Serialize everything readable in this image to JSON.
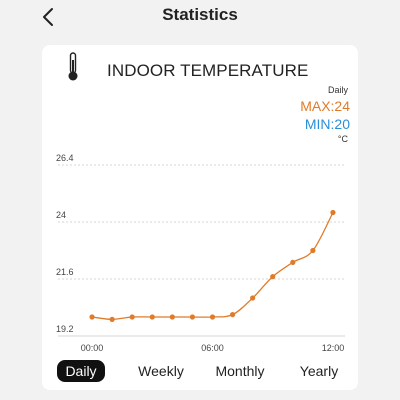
{
  "header": {
    "title": "Statistics",
    "back_icon": "chevron-left-icon"
  },
  "card": {
    "icon": "thermometer-icon",
    "title": "INDOOR TEMPERATURE",
    "period": "Daily",
    "max_label": "MAX:24",
    "min_label": "MIN:20",
    "unit": "°C",
    "colors": {
      "max": "#e07b2a",
      "min": "#2a8fd6",
      "line": "#e07b2a"
    }
  },
  "tabs": [
    {
      "label": "Daily",
      "active": true
    },
    {
      "label": "Weekly",
      "active": false
    },
    {
      "label": "Monthly",
      "active": false
    },
    {
      "label": "Yearly",
      "active": false
    }
  ],
  "chart_data": {
    "type": "line",
    "x_tick_labels": [
      "00:00",
      "06:00",
      "12:00"
    ],
    "x_ticks_hours": [
      0,
      6,
      12
    ],
    "y_tick_labels": [
      "19.2",
      "21.6",
      "24",
      "26.4"
    ],
    "y_ticks": [
      19.2,
      21.6,
      24,
      26.4
    ],
    "ylim": [
      19.2,
      26.4
    ],
    "xlim": [
      -0.6,
      12.6
    ],
    "grid": true,
    "series": [
      {
        "x": [
          0,
          1,
          2,
          3,
          4,
          5,
          6,
          7,
          8,
          9,
          10,
          11,
          12
        ],
        "values": [
          20.0,
          19.9,
          20.0,
          20.0,
          20.0,
          20.0,
          20.0,
          20.1,
          20.8,
          21.7,
          22.3,
          22.8,
          24.4
        ]
      }
    ]
  }
}
